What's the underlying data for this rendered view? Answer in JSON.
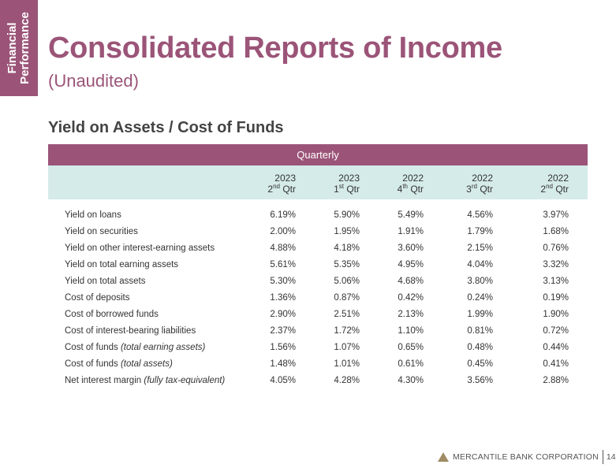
{
  "side_tab": {
    "line1": "Financial",
    "line2": "Performance"
  },
  "title": "Consolidated Reports of Income",
  "subtitle": "(Unaudited)",
  "section_title": "Yield on Assets / Cost of Funds",
  "table": {
    "banner": "Quarterly",
    "columns": [
      {
        "year": "2023",
        "num": "2",
        "sup": "nd",
        "qtr": "Qtr"
      },
      {
        "year": "2023",
        "num": "1",
        "sup": "st",
        "qtr": "Qtr"
      },
      {
        "year": "2022",
        "num": "4",
        "sup": "th",
        "qtr": "Qtr"
      },
      {
        "year": "2022",
        "num": "3",
        "sup": "rd",
        "qtr": "Qtr"
      },
      {
        "year": "2022",
        "num": "2",
        "sup": "nd",
        "qtr": "Qtr"
      }
    ],
    "rows": [
      {
        "label": "Yield on loans",
        "note": "",
        "values": [
          "6.19%",
          "5.90%",
          "5.49%",
          "4.56%",
          "3.97%"
        ]
      },
      {
        "label": "Yield on securities",
        "note": "",
        "values": [
          "2.00%",
          "1.95%",
          "1.91%",
          "1.79%",
          "1.68%"
        ]
      },
      {
        "label": "Yield on other interest-earning assets",
        "note": "",
        "values": [
          "4.88%",
          "4.18%",
          "3.60%",
          "2.15%",
          "0.76%"
        ]
      },
      {
        "label": "Yield on total earning assets",
        "note": "",
        "values": [
          "5.61%",
          "5.35%",
          "4.95%",
          "4.04%",
          "3.32%"
        ]
      },
      {
        "label": "Yield on total assets",
        "note": "",
        "values": [
          "5.30%",
          "5.06%",
          "4.68%",
          "3.80%",
          "3.13%"
        ]
      },
      {
        "label": "Cost of deposits",
        "note": "",
        "values": [
          "1.36%",
          "0.87%",
          "0.42%",
          "0.24%",
          "0.19%"
        ]
      },
      {
        "label": "Cost of borrowed funds",
        "note": "",
        "values": [
          "2.90%",
          "2.51%",
          "2.13%",
          "1.99%",
          "1.90%"
        ]
      },
      {
        "label": "Cost of interest-bearing liabilities",
        "note": "",
        "values": [
          "2.37%",
          "1.72%",
          "1.10%",
          "0.81%",
          "0.72%"
        ]
      },
      {
        "label": "Cost of funds ",
        "note": "(total earning assets)",
        "values": [
          "1.56%",
          "1.07%",
          "0.65%",
          "0.48%",
          "0.44%"
        ]
      },
      {
        "label": "Cost of funds ",
        "note": "(total assets)",
        "values": [
          "1.48%",
          "1.01%",
          "0.61%",
          "0.45%",
          "0.41%"
        ]
      },
      {
        "label": "Net interest margin ",
        "note": "(fully tax-equivalent)",
        "values": [
          "4.05%",
          "4.28%",
          "4.30%",
          "3.56%",
          "2.88%"
        ]
      }
    ]
  },
  "footer": {
    "company": "MERCANTILE BANK CORPORATION",
    "page": "14",
    "logo_icon": "triangle-logo-icon"
  },
  "colors": {
    "brand": "#9b5478",
    "header_band": "#d5ebe9",
    "logo": "#a08b64"
  }
}
